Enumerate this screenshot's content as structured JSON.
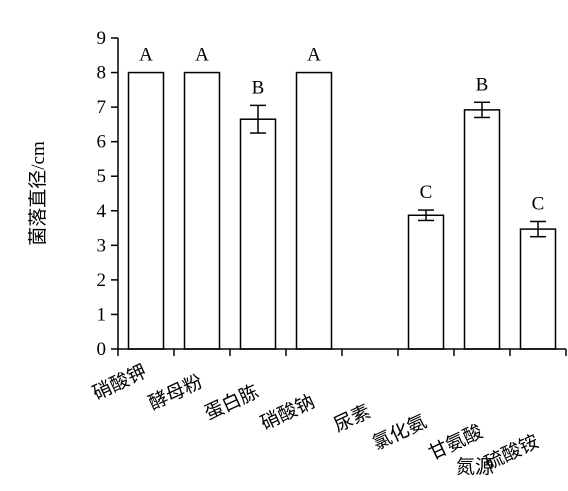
{
  "chart_data": {
    "type": "bar",
    "title": "",
    "xlabel": "氮源",
    "ylabel": "菌落直径/cm",
    "ylim": [
      0,
      9
    ],
    "yticks": [
      0,
      1,
      2,
      3,
      4,
      5,
      6,
      7,
      8,
      9
    ],
    "categories": [
      "硝酸钾",
      "酵母粉",
      "蛋白胨",
      "硝酸钠",
      "尿素",
      "氯化氨",
      "甘氨酸",
      "硫酸铵"
    ],
    "values": [
      8.0,
      8.0,
      6.65,
      8.0,
      0,
      3.87,
      6.92,
      3.47
    ],
    "errors": [
      0,
      0,
      0.4,
      0,
      0,
      0.15,
      0.22,
      0.22
    ],
    "significance": [
      "A",
      "A",
      "B",
      "A",
      "",
      "C",
      "B",
      "C"
    ],
    "grid": false,
    "legend": "none",
    "colors": {
      "bar_fill": "#ffffff",
      "bar_stroke": "#000000"
    }
  }
}
